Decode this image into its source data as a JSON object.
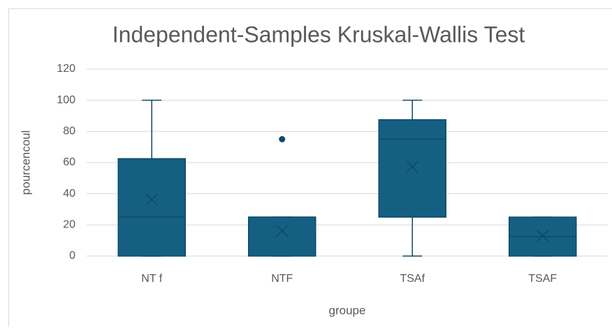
{
  "chart_data": {
    "type": "box",
    "title": "Independent-Samples Kruskal-Wallis Test",
    "x_label": "groupe",
    "y_label": "pourcencoul",
    "categories": [
      "NT f",
      "NTF",
      "TSAf",
      "TSAF"
    ],
    "boxes": [
      {
        "min": 0,
        "q1": 0,
        "median": 25,
        "q3": 62.5,
        "max": 100,
        "mean": 36.3
      },
      {
        "min": 0,
        "q1": 0,
        "median": 25,
        "q3": 25,
        "max": 25,
        "mean": 16.1,
        "outliers": [
          75
        ]
      },
      {
        "min": 0,
        "q1": 25,
        "median": 75,
        "q3": 87.5,
        "max": 100,
        "mean": 57.3
      },
      {
        "min": 0,
        "q1": 0,
        "median": 12.5,
        "q3": 25,
        "max": 25,
        "mean": 13
      }
    ],
    "color": "#156082",
    "ylim": [
      0,
      120
    ],
    "yticks": [
      0,
      20,
      40,
      60,
      80,
      100,
      120
    ],
    "grid": true
  }
}
